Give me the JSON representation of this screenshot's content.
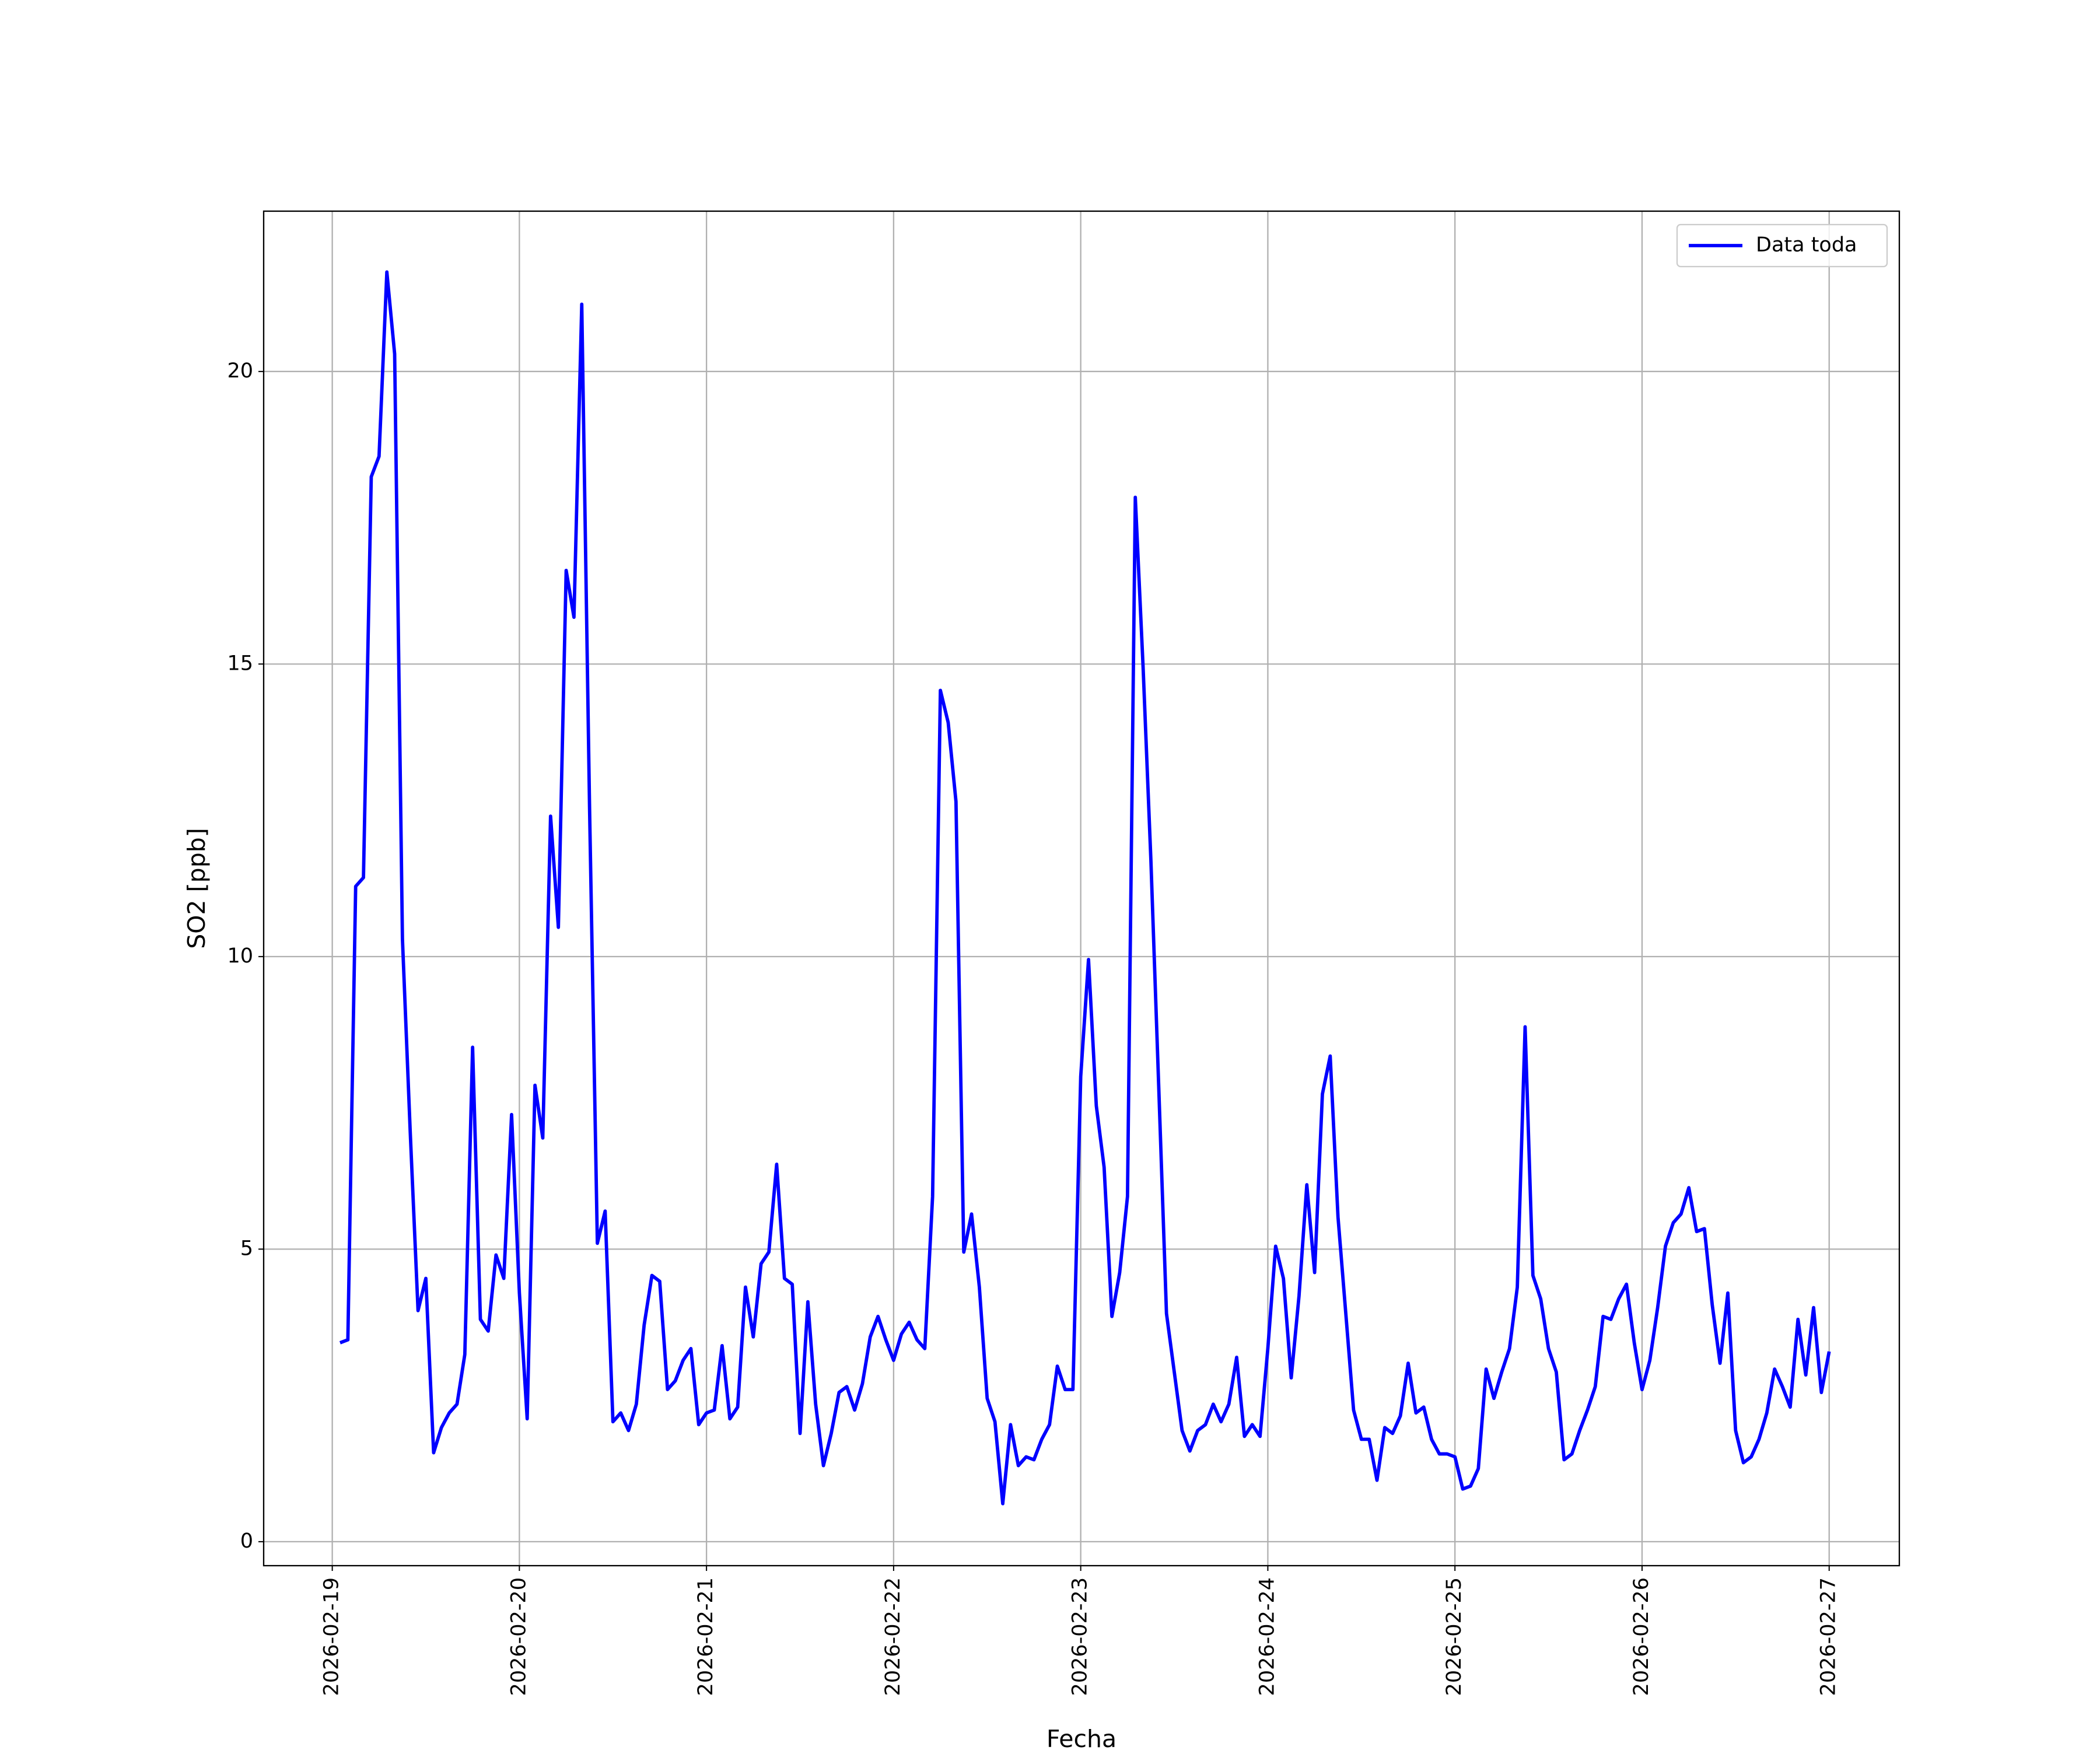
{
  "chart_data": {
    "type": "line",
    "xlabel": "Fecha",
    "ylabel": "SO2 [ppb]",
    "x": [
      "2026-02-19T01:00",
      "2026-02-19T02:00",
      "2026-02-19T03:00",
      "2026-02-19T04:00",
      "2026-02-19T05:00",
      "2026-02-19T06:00",
      "2026-02-19T07:00",
      "2026-02-19T08:00",
      "2026-02-19T09:00",
      "2026-02-19T10:00",
      "2026-02-19T11:00",
      "2026-02-19T12:00",
      "2026-02-19T13:00",
      "2026-02-19T14:00",
      "2026-02-19T15:00",
      "2026-02-19T16:00",
      "2026-02-19T17:00",
      "2026-02-19T18:00",
      "2026-02-19T19:00",
      "2026-02-19T20:00",
      "2026-02-19T21:00",
      "2026-02-19T22:00",
      "2026-02-19T23:00",
      "2026-02-20T00:00",
      "2026-02-20T01:00",
      "2026-02-20T02:00",
      "2026-02-20T03:00",
      "2026-02-20T04:00",
      "2026-02-20T05:00",
      "2026-02-20T06:00",
      "2026-02-20T07:00",
      "2026-02-20T08:00",
      "2026-02-20T09:00",
      "2026-02-20T10:00",
      "2026-02-20T11:00",
      "2026-02-20T12:00",
      "2026-02-20T13:00",
      "2026-02-20T14:00",
      "2026-02-20T15:00",
      "2026-02-20T16:00",
      "2026-02-20T17:00",
      "2026-02-20T18:00",
      "2026-02-20T19:00",
      "2026-02-20T20:00",
      "2026-02-20T21:00",
      "2026-02-20T22:00",
      "2026-02-20T23:00",
      "2026-02-21T00:00",
      "2026-02-21T01:00",
      "2026-02-21T02:00",
      "2026-02-21T03:00",
      "2026-02-21T04:00",
      "2026-02-21T05:00",
      "2026-02-21T06:00",
      "2026-02-21T07:00",
      "2026-02-21T08:00",
      "2026-02-21T09:00",
      "2026-02-21T10:00",
      "2026-02-21T11:00",
      "2026-02-21T12:00",
      "2026-02-21T13:00",
      "2026-02-21T14:00",
      "2026-02-21T15:00",
      "2026-02-21T16:00",
      "2026-02-21T17:00",
      "2026-02-21T18:00",
      "2026-02-21T19:00",
      "2026-02-21T20:00",
      "2026-02-21T21:00",
      "2026-02-21T22:00",
      "2026-02-21T23:00",
      "2026-02-22T00:00",
      "2026-02-22T01:00",
      "2026-02-22T02:00",
      "2026-02-22T03:00",
      "2026-02-22T04:00",
      "2026-02-22T05:00",
      "2026-02-22T06:00",
      "2026-02-22T07:00",
      "2026-02-22T08:00",
      "2026-02-22T09:00",
      "2026-02-22T10:00",
      "2026-02-22T11:00",
      "2026-02-22T12:00",
      "2026-02-22T13:00",
      "2026-02-22T14:00",
      "2026-02-22T15:00",
      "2026-02-22T16:00",
      "2026-02-22T17:00",
      "2026-02-22T18:00",
      "2026-02-22T19:00",
      "2026-02-22T20:00",
      "2026-02-22T21:00",
      "2026-02-22T22:00",
      "2026-02-22T23:00",
      "2026-02-23T00:00",
      "2026-02-23T01:00",
      "2026-02-23T02:00",
      "2026-02-23T03:00",
      "2026-02-23T04:00",
      "2026-02-23T05:00",
      "2026-02-23T06:00",
      "2026-02-23T07:00",
      "2026-02-23T08:00",
      "2026-02-23T09:00",
      "2026-02-23T10:00",
      "2026-02-23T11:00",
      "2026-02-23T12:00",
      "2026-02-23T13:00",
      "2026-02-23T14:00",
      "2026-02-23T15:00",
      "2026-02-23T16:00",
      "2026-02-23T17:00",
      "2026-02-23T18:00",
      "2026-02-23T19:00",
      "2026-02-23T20:00",
      "2026-02-23T21:00",
      "2026-02-23T22:00",
      "2026-02-23T23:00",
      "2026-02-24T00:00",
      "2026-02-24T01:00",
      "2026-02-24T02:00",
      "2026-02-24T03:00",
      "2026-02-24T04:00",
      "2026-02-24T05:00",
      "2026-02-24T06:00",
      "2026-02-24T07:00",
      "2026-02-24T08:00",
      "2026-02-24T09:00",
      "2026-02-24T10:00",
      "2026-02-24T11:00",
      "2026-02-24T12:00",
      "2026-02-24T13:00",
      "2026-02-24T14:00",
      "2026-02-24T15:00",
      "2026-02-24T16:00",
      "2026-02-24T17:00",
      "2026-02-24T18:00",
      "2026-02-24T19:00",
      "2026-02-24T20:00",
      "2026-02-24T21:00",
      "2026-02-24T22:00",
      "2026-02-24T23:00",
      "2026-02-25T00:00",
      "2026-02-25T01:00",
      "2026-02-25T02:00",
      "2026-02-25T03:00",
      "2026-02-25T04:00",
      "2026-02-25T05:00",
      "2026-02-25T06:00",
      "2026-02-25T07:00",
      "2026-02-25T08:00",
      "2026-02-25T09:00",
      "2026-02-25T10:00",
      "2026-02-25T11:00",
      "2026-02-25T12:00",
      "2026-02-25T13:00",
      "2026-02-25T14:00",
      "2026-02-25T15:00",
      "2026-02-25T16:00",
      "2026-02-25T17:00",
      "2026-02-25T18:00",
      "2026-02-25T19:00",
      "2026-02-25T20:00",
      "2026-02-25T21:00",
      "2026-02-25T22:00",
      "2026-02-25T23:00",
      "2026-02-26T00:00",
      "2026-02-26T01:00",
      "2026-02-26T02:00",
      "2026-02-26T03:00",
      "2026-02-26T04:00",
      "2026-02-26T05:00",
      "2026-02-26T06:00",
      "2026-02-26T07:00",
      "2026-02-26T08:00",
      "2026-02-26T09:00",
      "2026-02-26T10:00",
      "2026-02-26T11:00",
      "2026-02-26T12:00",
      "2026-02-26T13:00",
      "2026-02-26T14:00",
      "2026-02-26T15:00",
      "2026-02-26T16:00",
      "2026-02-26T17:00",
      "2026-02-26T18:00",
      "2026-02-26T19:00",
      "2026-02-26T20:00",
      "2026-02-26T21:00",
      "2026-02-26T22:00",
      "2026-02-26T23:00",
      "2026-02-27T00:00"
    ],
    "series": [
      {
        "name": "Data toda",
        "color": "#0000ff",
        "values": [
          3.4,
          3.45,
          11.2,
          11.35,
          18.2,
          18.55,
          21.7,
          20.3,
          10.3,
          7.0,
          3.95,
          4.5,
          1.52,
          1.95,
          2.2,
          2.35,
          3.2,
          8.45,
          3.8,
          3.6,
          4.9,
          4.5,
          7.3,
          4.25,
          2.1,
          7.8,
          6.9,
          12.4,
          10.5,
          16.6,
          15.8,
          21.15,
          12.55,
          5.1,
          5.65,
          2.05,
          2.2,
          1.9,
          2.35,
          3.7,
          4.55,
          4.45,
          2.6,
          2.75,
          3.1,
          3.3,
          2.0,
          2.2,
          2.25,
          3.35,
          2.1,
          2.3,
          4.35,
          3.5,
          4.75,
          4.95,
          6.45,
          4.5,
          4.4,
          1.85,
          4.1,
          2.35,
          1.3,
          1.85,
          2.55,
          2.65,
          2.25,
          2.7,
          3.5,
          3.85,
          3.45,
          3.1,
          3.55,
          3.75,
          3.45,
          3.3,
          5.9,
          14.55,
          14.0,
          12.65,
          4.95,
          5.6,
          4.35,
          2.45,
          2.05,
          0.65,
          2.0,
          1.3,
          1.45,
          1.4,
          1.75,
          2.0,
          3.0,
          2.6,
          2.6,
          7.95,
          9.95,
          7.45,
          6.4,
          3.85,
          4.6,
          5.9,
          17.85,
          14.95,
          11.65,
          7.8,
          3.9,
          2.9,
          1.9,
          1.55,
          1.9,
          2.0,
          2.35,
          2.05,
          2.35,
          3.15,
          1.8,
          2.0,
          1.8,
          3.3,
          5.05,
          4.5,
          2.8,
          4.2,
          6.1,
          4.6,
          7.65,
          8.3,
          5.55,
          3.9,
          2.25,
          1.75,
          1.75,
          1.05,
          1.95,
          1.85,
          2.15,
          3.05,
          2.2,
          2.3,
          1.75,
          1.5,
          1.5,
          1.45,
          0.9,
          0.95,
          1.25,
          2.95,
          2.45,
          2.9,
          3.3,
          4.35,
          8.8,
          4.55,
          4.15,
          3.3,
          2.9,
          1.4,
          1.5,
          1.9,
          2.25,
          2.65,
          3.85,
          3.8,
          4.15,
          4.4,
          3.4,
          2.6,
          3.1,
          4.0,
          5.05,
          5.45,
          5.6,
          6.05,
          5.3,
          5.35,
          4.05,
          3.05,
          4.25,
          1.9,
          1.35,
          1.45,
          1.75,
          2.2,
          2.95,
          2.65,
          2.3,
          3.8,
          2.85,
          4.0,
          2.55,
          3.25
        ]
      }
    ],
    "xlim": [
      "2026-02-18T15:12",
      "2026-02-27T09:00"
    ],
    "xticks": [
      "2026-02-19",
      "2026-02-20",
      "2026-02-21",
      "2026-02-22",
      "2026-02-23",
      "2026-02-24",
      "2026-02-25",
      "2026-02-26",
      "2026-02-27"
    ],
    "ylim": [
      -0.41,
      22.74
    ],
    "yticks": [
      0,
      5,
      10,
      15,
      20
    ],
    "grid": true,
    "legend": "upper right"
  }
}
